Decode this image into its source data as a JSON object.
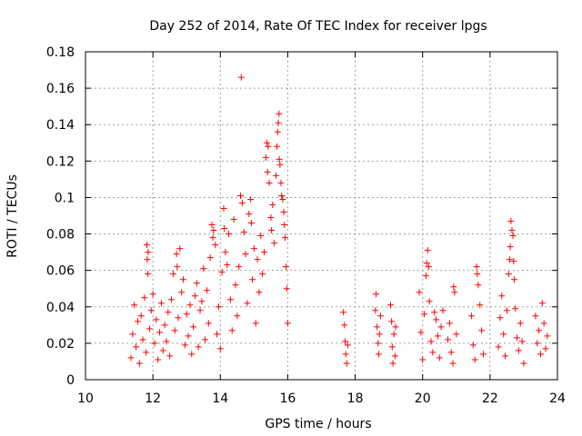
{
  "chart_data": {
    "type": "scatter",
    "title": "Day 252 of 2014, Rate Of TEC Index for receiver lpgs",
    "xlabel": "GPS time / hours",
    "ylabel": "ROTI / TECUs",
    "xlim": [
      10,
      24
    ],
    "ylim": [
      0,
      0.18
    ],
    "xticks": [
      "10",
      "12",
      "14",
      "16",
      "18",
      "20",
      "22",
      "24"
    ],
    "yticks": [
      "0",
      "0.02",
      "0.04",
      "0.06",
      "0.08",
      "0.1",
      "0.12",
      "0.14",
      "0.16",
      "0.18"
    ],
    "grid": true,
    "marker": "+",
    "color": "#ff0000",
    "series": [
      {
        "name": "ROTI",
        "points": [
          [
            11.35,
            0.012
          ],
          [
            11.4,
            0.025
          ],
          [
            11.45,
            0.041
          ],
          [
            11.5,
            0.018
          ],
          [
            11.55,
            0.032
          ],
          [
            11.6,
            0.009
          ],
          [
            11.65,
            0.035
          ],
          [
            11.7,
            0.022
          ],
          [
            11.75,
            0.045
          ],
          [
            11.8,
            0.015
          ],
          [
            11.82,
            0.074
          ],
          [
            11.83,
            0.066
          ],
          [
            11.85,
            0.058
          ],
          [
            11.86,
            0.07
          ],
          [
            11.9,
            0.028
          ],
          [
            11.95,
            0.038
          ],
          [
            12.0,
            0.047
          ],
          [
            12.05,
            0.02
          ],
          [
            12.1,
            0.033
          ],
          [
            12.15,
            0.011
          ],
          [
            12.2,
            0.026
          ],
          [
            12.25,
            0.042
          ],
          [
            12.3,
            0.016
          ],
          [
            12.35,
            0.03
          ],
          [
            12.4,
            0.021
          ],
          [
            12.45,
            0.037
          ],
          [
            12.5,
            0.013
          ],
          [
            12.55,
            0.044
          ],
          [
            12.6,
            0.058
          ],
          [
            12.65,
            0.027
          ],
          [
            12.7,
            0.069
          ],
          [
            12.72,
            0.062
          ],
          [
            12.75,
            0.034
          ],
          [
            12.8,
            0.072
          ],
          [
            12.85,
            0.048
          ],
          [
            12.9,
            0.055
          ],
          [
            12.95,
            0.019
          ],
          [
            13.0,
            0.036
          ],
          [
            13.05,
            0.024
          ],
          [
            13.1,
            0.041
          ],
          [
            13.15,
            0.014
          ],
          [
            13.2,
            0.029
          ],
          [
            13.25,
            0.046
          ],
          [
            13.3,
            0.053
          ],
          [
            13.35,
            0.018
          ],
          [
            13.4,
            0.038
          ],
          [
            13.45,
            0.043
          ],
          [
            13.5,
            0.061
          ],
          [
            13.55,
            0.022
          ],
          [
            13.6,
            0.049
          ],
          [
            13.65,
            0.031
          ],
          [
            13.7,
            0.067
          ],
          [
            13.75,
            0.085
          ],
          [
            13.78,
            0.078
          ],
          [
            13.8,
            0.082
          ],
          [
            13.85,
            0.074
          ],
          [
            13.9,
            0.025
          ],
          [
            13.95,
            0.04
          ],
          [
            14.0,
            0.017
          ],
          [
            14.05,
            0.059
          ],
          [
            14.1,
            0.094
          ],
          [
            14.12,
            0.083
          ],
          [
            14.15,
            0.07
          ],
          [
            14.2,
            0.063
          ],
          [
            14.25,
            0.08
          ],
          [
            14.3,
            0.044
          ],
          [
            14.35,
            0.027
          ],
          [
            14.4,
            0.088
          ],
          [
            14.45,
            0.052
          ],
          [
            14.5,
            0.035
          ],
          [
            14.55,
            0.062
          ],
          [
            14.6,
            0.101
          ],
          [
            14.62,
            0.166
          ],
          [
            14.65,
            0.097
          ],
          [
            14.7,
            0.081
          ],
          [
            14.75,
            0.069
          ],
          [
            14.8,
            0.042
          ],
          [
            14.85,
            0.091
          ],
          [
            14.9,
            0.099
          ],
          [
            14.92,
            0.086
          ],
          [
            14.95,
            0.055
          ],
          [
            15.0,
            0.072
          ],
          [
            15.05,
            0.031
          ],
          [
            15.1,
            0.066
          ],
          [
            15.15,
            0.048
          ],
          [
            15.2,
            0.079
          ],
          [
            15.25,
            0.058
          ],
          [
            15.3,
            0.07
          ],
          [
            15.35,
            0.122
          ],
          [
            15.38,
            0.13
          ],
          [
            15.4,
            0.114
          ],
          [
            15.42,
            0.128
          ],
          [
            15.45,
            0.108
          ],
          [
            15.5,
            0.089
          ],
          [
            15.52,
            0.082
          ],
          [
            15.55,
            0.096
          ],
          [
            15.6,
            0.075
          ],
          [
            15.65,
            0.112
          ],
          [
            15.68,
            0.128
          ],
          [
            15.7,
            0.136
          ],
          [
            15.72,
            0.141
          ],
          [
            15.74,
            0.146
          ],
          [
            15.75,
            0.121
          ],
          [
            15.77,
            0.118
          ],
          [
            15.8,
            0.108
          ],
          [
            15.82,
            0.101
          ],
          [
            15.85,
            0.099
          ],
          [
            15.88,
            0.092
          ],
          [
            15.9,
            0.085
          ],
          [
            15.92,
            0.078
          ],
          [
            15.95,
            0.062
          ],
          [
            15.97,
            0.05
          ],
          [
            16.0,
            0.031
          ],
          [
            17.65,
            0.037
          ],
          [
            17.68,
            0.03
          ],
          [
            17.7,
            0.021
          ],
          [
            17.72,
            0.014
          ],
          [
            17.75,
            0.009
          ],
          [
            17.78,
            0.019
          ],
          [
            18.6,
            0.038
          ],
          [
            18.62,
            0.047
          ],
          [
            18.65,
            0.029
          ],
          [
            18.68,
            0.02
          ],
          [
            18.7,
            0.014
          ],
          [
            18.72,
            0.025
          ],
          [
            18.75,
            0.035
          ],
          [
            19.05,
            0.041
          ],
          [
            19.08,
            0.032
          ],
          [
            19.1,
            0.018
          ],
          [
            19.12,
            0.009
          ],
          [
            19.15,
            0.025
          ],
          [
            19.18,
            0.013
          ],
          [
            19.2,
            0.029
          ],
          [
            19.9,
            0.048
          ],
          [
            19.95,
            0.026
          ],
          [
            20.0,
            0.011
          ],
          [
            20.05,
            0.036
          ],
          [
            20.1,
            0.057
          ],
          [
            20.12,
            0.064
          ],
          [
            20.15,
            0.071
          ],
          [
            20.18,
            0.062
          ],
          [
            20.2,
            0.043
          ],
          [
            20.25,
            0.021
          ],
          [
            20.3,
            0.015
          ],
          [
            20.35,
            0.037
          ],
          [
            20.4,
            0.033
          ],
          [
            20.45,
            0.024
          ],
          [
            20.5,
            0.012
          ],
          [
            20.55,
            0.029
          ],
          [
            20.6,
            0.038
          ],
          [
            20.75,
            0.022
          ],
          [
            20.8,
            0.031
          ],
          [
            20.85,
            0.015
          ],
          [
            20.9,
            0.009
          ],
          [
            20.92,
            0.051
          ],
          [
            20.95,
            0.048
          ],
          [
            21.0,
            0.025
          ],
          [
            21.45,
            0.035
          ],
          [
            21.5,
            0.019
          ],
          [
            21.55,
            0.011
          ],
          [
            21.6,
            0.062
          ],
          [
            21.62,
            0.058
          ],
          [
            21.65,
            0.052
          ],
          [
            21.7,
            0.041
          ],
          [
            21.75,
            0.027
          ],
          [
            21.8,
            0.014
          ],
          [
            22.25,
            0.018
          ],
          [
            22.3,
            0.034
          ],
          [
            22.35,
            0.046
          ],
          [
            22.4,
            0.025
          ],
          [
            22.45,
            0.013
          ],
          [
            22.5,
            0.038
          ],
          [
            22.55,
            0.058
          ],
          [
            22.58,
            0.066
          ],
          [
            22.6,
            0.073
          ],
          [
            22.62,
            0.087
          ],
          [
            22.65,
            0.082
          ],
          [
            22.68,
            0.079
          ],
          [
            22.7,
            0.065
          ],
          [
            22.72,
            0.055
          ],
          [
            22.75,
            0.039
          ],
          [
            22.8,
            0.023
          ],
          [
            22.85,
            0.016
          ],
          [
            22.9,
            0.031
          ],
          [
            22.95,
            0.021
          ],
          [
            23.0,
            0.009
          ],
          [
            23.35,
            0.035
          ],
          [
            23.4,
            0.02
          ],
          [
            23.45,
            0.027
          ],
          [
            23.5,
            0.014
          ],
          [
            23.55,
            0.042
          ],
          [
            23.6,
            0.031
          ],
          [
            23.65,
            0.017
          ],
          [
            23.7,
            0.024
          ]
        ]
      }
    ]
  }
}
